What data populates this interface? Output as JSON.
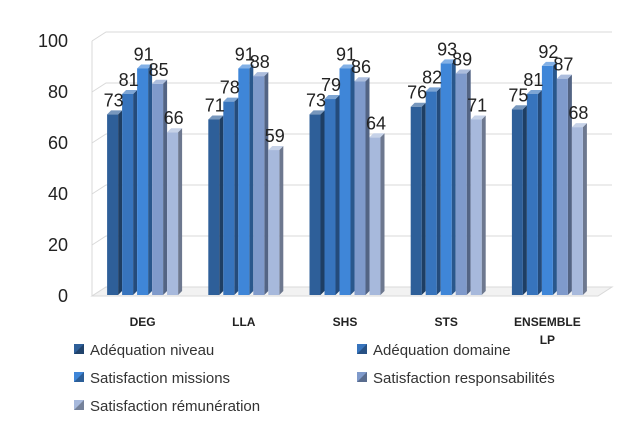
{
  "chart_data": {
    "type": "bar",
    "style": "3d-clustered-column",
    "categories": [
      "DEG",
      "LLA",
      "SHS",
      "STS",
      "ENSEMBLE LP"
    ],
    "series": [
      {
        "name": "Adéquation niveau",
        "values": [
          73,
          71,
          73,
          76,
          75
        ],
        "color": "#2E5F99"
      },
      {
        "name": "Adéquation domaine",
        "values": [
          81,
          78,
          79,
          82,
          81
        ],
        "color": "#3774BD"
      },
      {
        "name": "Satisfaction missions",
        "values": [
          91,
          91,
          91,
          93,
          92
        ],
        "color": "#3F86D8"
      },
      {
        "name": "Satisfaction responsabilités",
        "values": [
          85,
          88,
          86,
          89,
          87
        ],
        "color": "#7F9ACB"
      },
      {
        "name": "Satisfaction rémunération",
        "values": [
          66,
          59,
          64,
          71,
          68
        ],
        "color": "#A7B9DC"
      }
    ],
    "yticks": [
      "0",
      "20",
      "40",
      "60",
      "80",
      "100"
    ],
    "ylim": [
      0,
      100
    ],
    "grid": true,
    "data_labels": true,
    "legend_position": "bottom"
  }
}
